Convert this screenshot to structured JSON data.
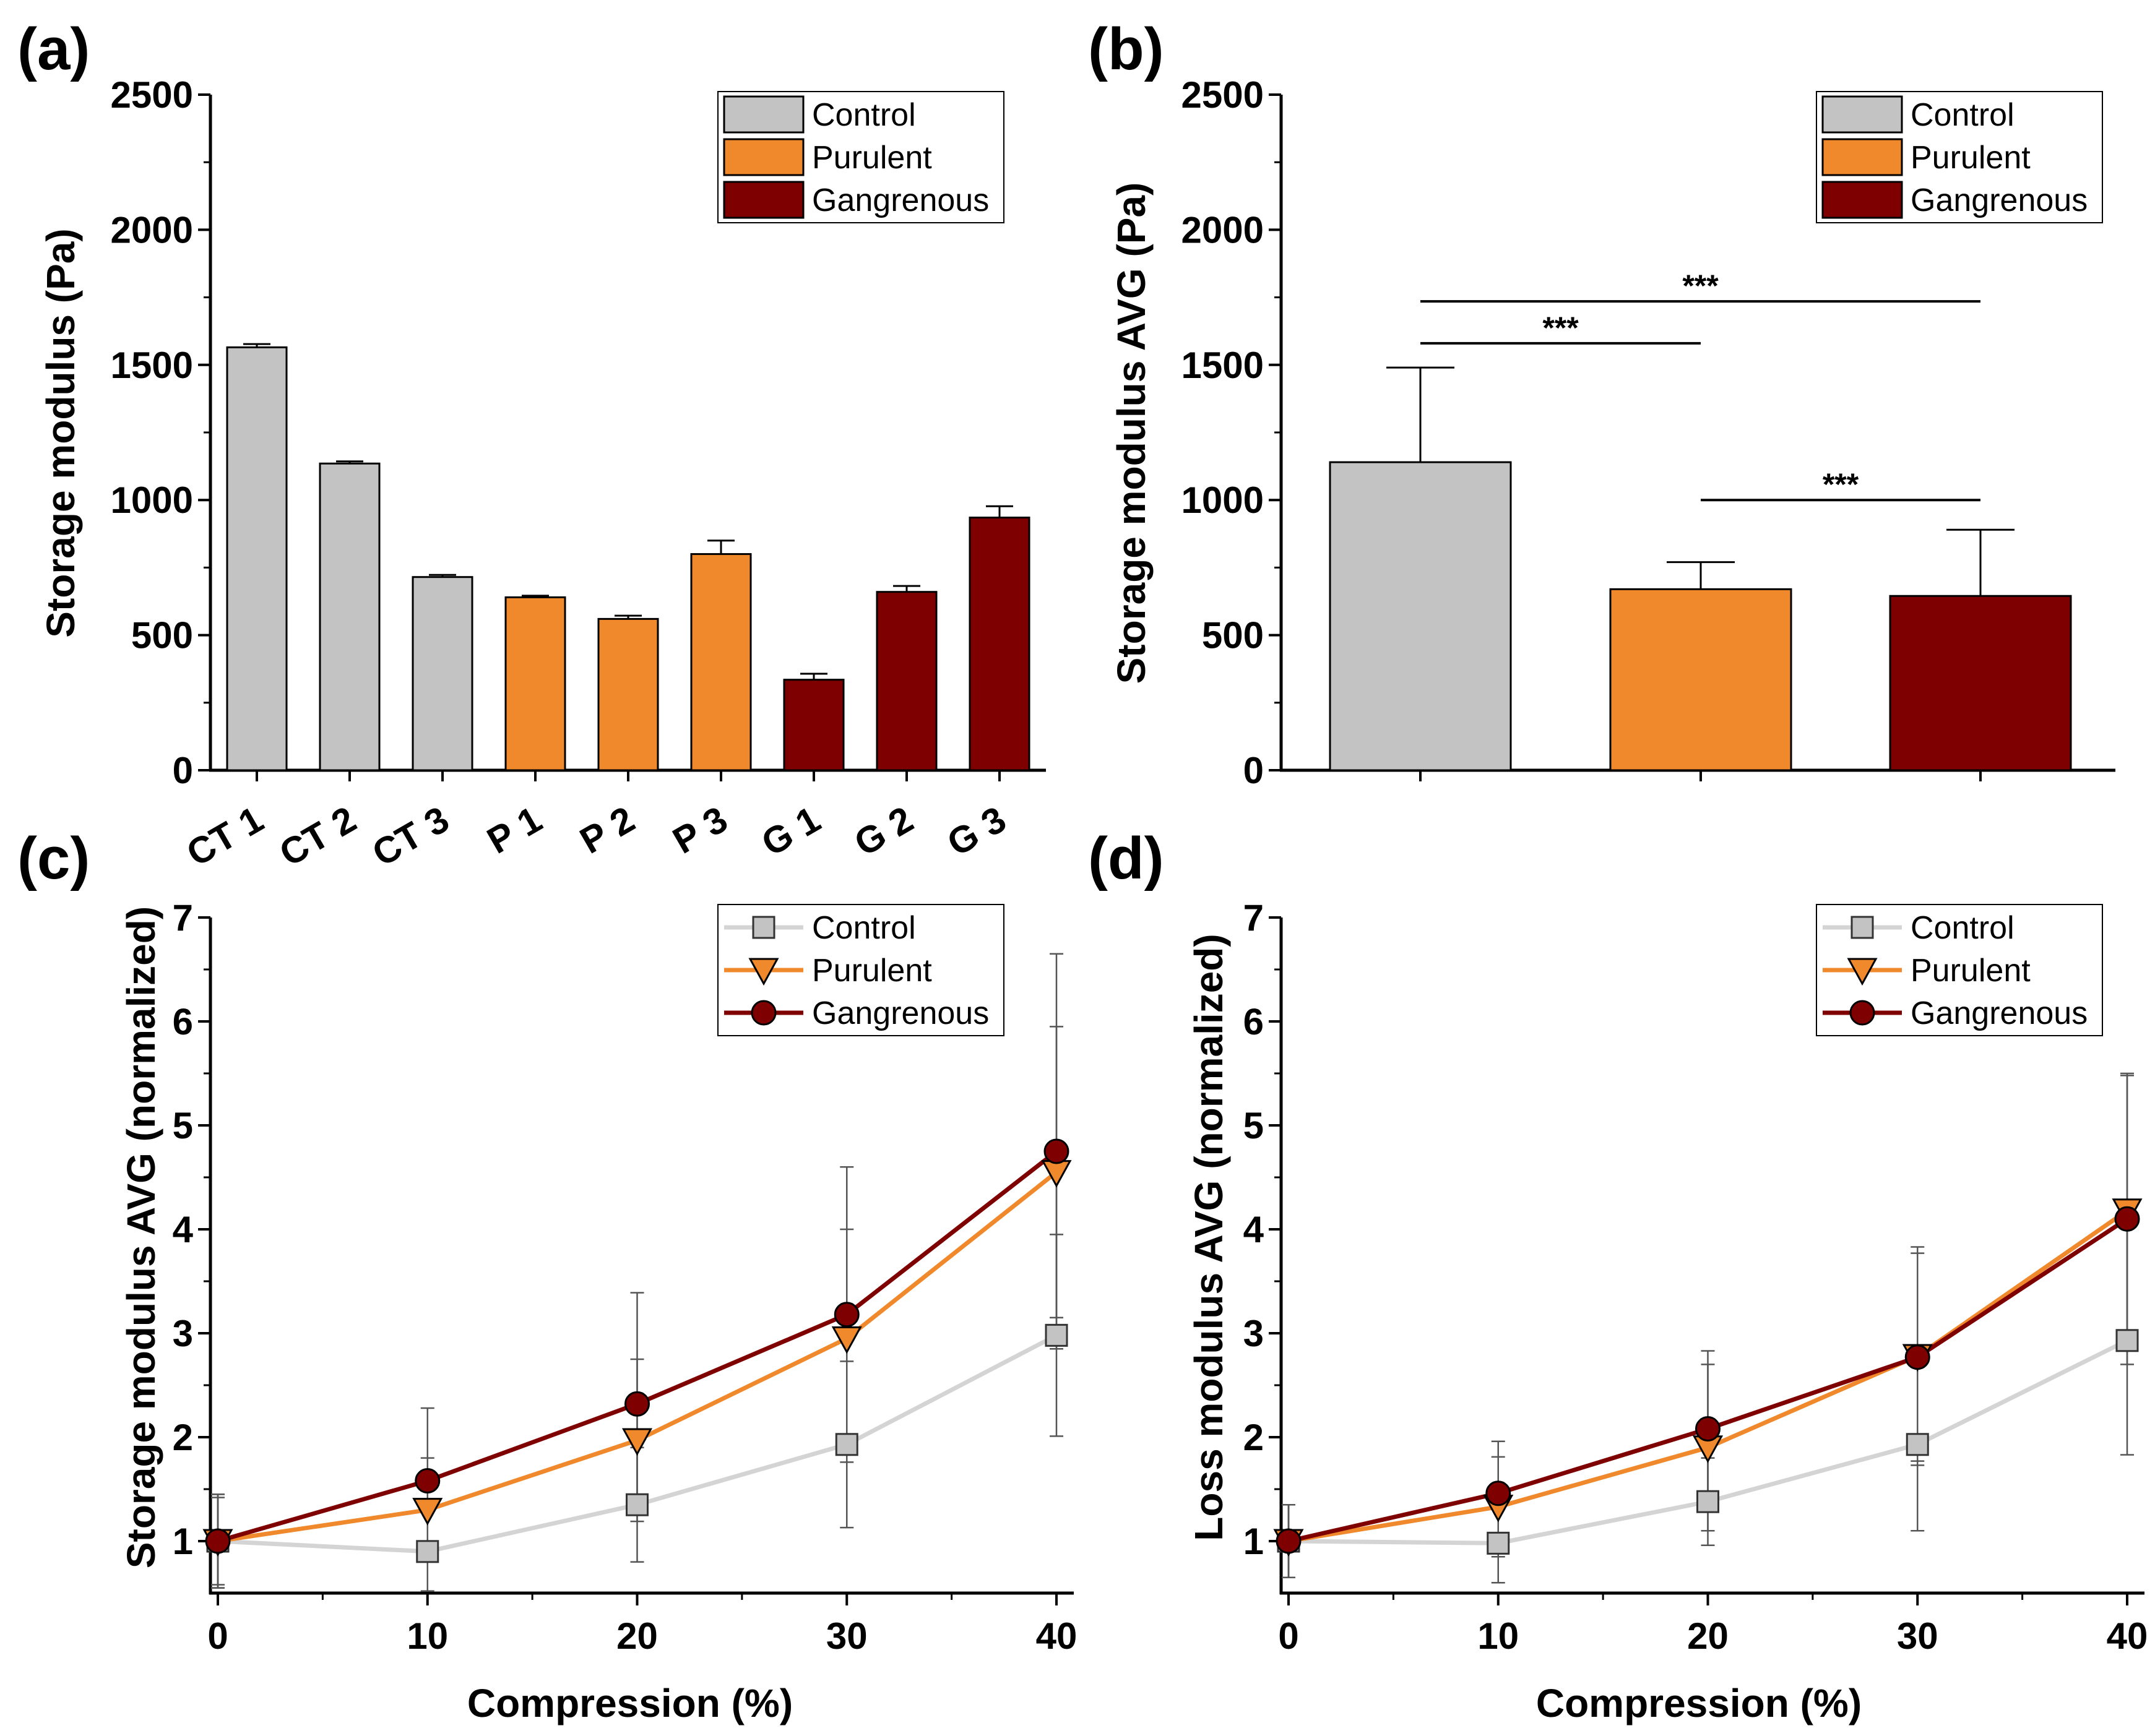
{
  "colors": {
    "control": "#c3c3c3",
    "control_line": "#d4d4d4",
    "purulent": "#f0882c",
    "gangrenous": "#7f0000",
    "axis": "#000000"
  },
  "legend_labels": [
    "Control",
    "Purulent",
    "Gangrenous"
  ],
  "chart_data": [
    {
      "panel": "(a)",
      "type": "bar",
      "ylabel": "Storage modulus (Pa)",
      "xlabel": "",
      "ylim": [
        0,
        2500
      ],
      "yticks": [
        0,
        500,
        1000,
        1500,
        2000,
        2500
      ],
      "categories": [
        "CT 1",
        "CT 2",
        "CT 3",
        "P 1",
        "P 2",
        "P 3",
        "G 1",
        "G 2",
        "G 3"
      ],
      "values": [
        1565,
        1135,
        715,
        640,
        560,
        800,
        335,
        660,
        935
      ],
      "errors": [
        12,
        8,
        8,
        6,
        12,
        50,
        22,
        22,
        42
      ],
      "groups": [
        "control",
        "control",
        "control",
        "purulent",
        "purulent",
        "purulent",
        "gangrenous",
        "gangrenous",
        "gangrenous"
      ],
      "legend": [
        "Control",
        "Purulent",
        "Gangrenous"
      ]
    },
    {
      "panel": "(b)",
      "type": "bar",
      "ylabel": "Storage modulus AVG (Pa)",
      "xlabel": "",
      "ylim": [
        0,
        2500
      ],
      "yticks": [
        0,
        500,
        1000,
        1500,
        2000,
        2500
      ],
      "categories": [
        "Control",
        "Purulent",
        "Gangrenous"
      ],
      "values": [
        1140,
        670,
        645
      ],
      "errors": [
        350,
        100,
        245
      ],
      "groups": [
        "control",
        "purulent",
        "gangrenous"
      ],
      "legend": [
        "Control",
        "Purulent",
        "Gangrenous"
      ],
      "significance": [
        {
          "from": 0,
          "to": 2,
          "y": 1735,
          "label": "***"
        },
        {
          "from": 0,
          "to": 1,
          "y": 1580,
          "label": "***"
        },
        {
          "from": 1,
          "to": 2,
          "y": 1000,
          "label": "***"
        }
      ]
    },
    {
      "panel": "(c)",
      "type": "line",
      "xlabel": "Compression (%)",
      "ylabel": "Storage modulus AVG (normalized)",
      "x": [
        0,
        10,
        20,
        30,
        40
      ],
      "xlim": [
        0,
        40
      ],
      "xticks": [
        0,
        10,
        20,
        30,
        40
      ],
      "ylim": [
        0.5,
        7
      ],
      "yticks": [
        1,
        2,
        3,
        4,
        5,
        6,
        7
      ],
      "series": [
        {
          "name": "Control",
          "key": "control",
          "marker": "square",
          "values": [
            1.0,
            0.9,
            1.35,
            1.93,
            2.98
          ],
          "errors": [
            0.45,
            0.38,
            0.55,
            0.8,
            0.97
          ]
        },
        {
          "name": "Purulent",
          "key": "purulent",
          "marker": "triangle",
          "values": [
            1.0,
            1.3,
            1.97,
            2.95,
            4.55
          ],
          "errors": [
            0.42,
            0.5,
            0.78,
            1.05,
            1.4
          ]
        },
        {
          "name": "Gangrenous",
          "key": "gangrenous",
          "marker": "circle",
          "values": [
            1.0,
            1.58,
            2.32,
            3.18,
            4.75
          ],
          "errors": [
            0.45,
            0.7,
            1.07,
            1.42,
            1.9
          ]
        }
      ],
      "legend": [
        "Control",
        "Purulent",
        "Gangrenous"
      ]
    },
    {
      "panel": "(d)",
      "type": "line",
      "xlabel": "Compression (%)",
      "ylabel": "Loss modulus AVG (normalized)",
      "x": [
        0,
        10,
        20,
        30,
        40
      ],
      "xlim": [
        0,
        40
      ],
      "xticks": [
        0,
        10,
        20,
        30,
        40
      ],
      "ylim": [
        0.5,
        7
      ],
      "yticks": [
        1,
        2,
        3,
        4,
        5,
        6,
        7
      ],
      "series": [
        {
          "name": "Control",
          "key": "control",
          "marker": "square",
          "values": [
            1.0,
            0.98,
            1.38,
            1.93,
            2.93
          ],
          "errors": [
            0.35,
            0.38,
            0.42,
            0.83,
            1.1
          ]
        },
        {
          "name": "Purulent",
          "key": "purulent",
          "marker": "triangle",
          "values": [
            1.0,
            1.33,
            1.9,
            2.78,
            4.18
          ],
          "errors": [
            0.35,
            0.48,
            0.8,
            1.05,
            1.3
          ]
        },
        {
          "name": "Gangrenous",
          "key": "gangrenous",
          "marker": "circle",
          "values": [
            1.0,
            1.46,
            2.08,
            2.77,
            4.1
          ],
          "errors": [
            0.35,
            0.5,
            0.75,
            1.0,
            1.4
          ]
        }
      ],
      "legend": [
        "Control",
        "Purulent",
        "Gangrenous"
      ]
    }
  ]
}
